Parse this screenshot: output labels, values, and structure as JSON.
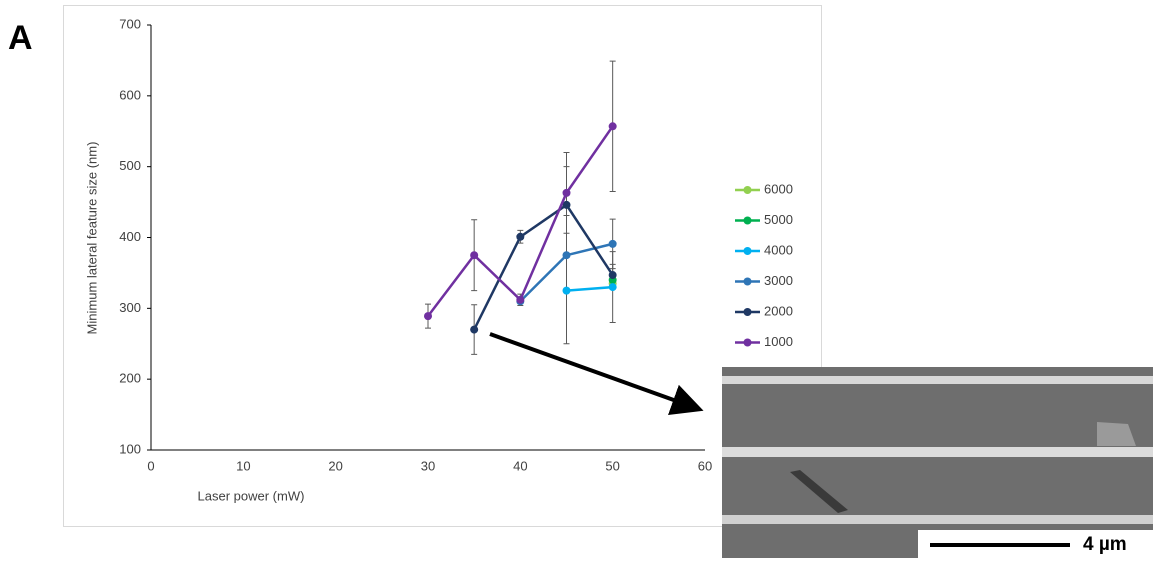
{
  "panel_label": "A",
  "chart_data": {
    "type": "line",
    "xlabel": "Laser power (mW)",
    "ylabel": "Minimum lateral feature size (nm)",
    "x": [
      30,
      35,
      40,
      45,
      50
    ],
    "xlim": [
      0,
      60
    ],
    "xticks": [
      0,
      10,
      20,
      30,
      40,
      50,
      60
    ],
    "ylim": [
      100,
      700
    ],
    "yticks": [
      100,
      200,
      300,
      400,
      500,
      600,
      700
    ],
    "series": [
      {
        "name": "6000",
        "color": "#92d050",
        "values": [
          null,
          null,
          null,
          null,
          335
        ],
        "errors": [
          null,
          null,
          null,
          null,
          null
        ]
      },
      {
        "name": "5000",
        "color": "#00b050",
        "values": [
          null,
          null,
          null,
          null,
          340
        ],
        "errors": [
          null,
          null,
          null,
          null,
          null
        ]
      },
      {
        "name": "4000",
        "color": "#00b0f0",
        "values": [
          null,
          null,
          null,
          325,
          330
        ],
        "errors": [
          null,
          null,
          null,
          null,
          50
        ]
      },
      {
        "name": "3000",
        "color": "#2e75b6",
        "values": [
          null,
          null,
          310,
          375,
          391
        ],
        "errors": [
          null,
          null,
          null,
          125,
          35
        ]
      },
      {
        "name": "2000",
        "color": "#1f3864",
        "values": [
          null,
          270,
          401,
          446,
          347
        ],
        "errors": [
          null,
          35,
          9,
          15,
          15
        ]
      },
      {
        "name": "1000",
        "color": "#7030a0",
        "values": [
          289,
          375,
          312,
          463,
          557
        ],
        "errors": [
          17,
          50,
          8,
          57,
          92
        ]
      }
    ]
  },
  "inset": {
    "scale_label": "4 µm"
  }
}
